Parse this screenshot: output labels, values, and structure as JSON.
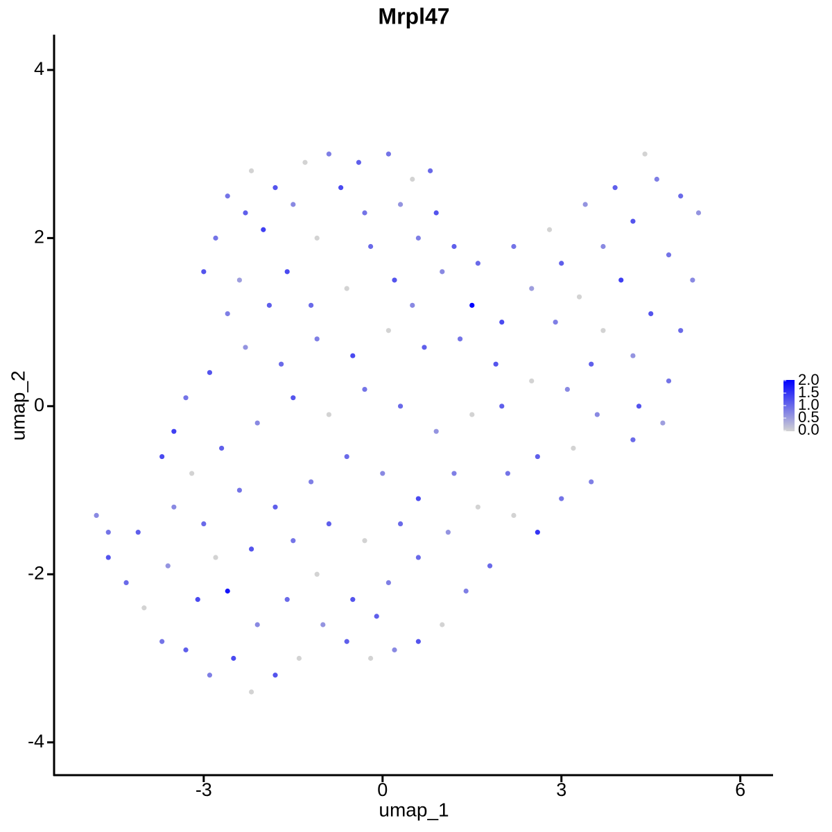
{
  "chart_data": {
    "type": "scatter",
    "title": "Mrpl47",
    "x_label": "umap_1",
    "y_label": "umap_2",
    "x": [
      -2.2,
      -1.8,
      -1.3,
      -0.9,
      -0.4,
      0.1,
      0.5,
      0.8,
      -2.3,
      -1.5,
      -0.7,
      0.3,
      0.9,
      -2.8,
      -2.0,
      -1.1,
      -0.2,
      0.6,
      1.2,
      -3.0,
      -2.4,
      -1.6,
      -0.6,
      0.2,
      1.0,
      1.6,
      1.5,
      2.2,
      2.8,
      3.4,
      3.9,
      4.4,
      4.6,
      5.0,
      5.3,
      4.2,
      3.7,
      3.0,
      2.5,
      2.0,
      3.3,
      4.0,
      4.8,
      5.2,
      4.5,
      3.7,
      2.9,
      5.0,
      4.2,
      3.5,
      4.8,
      4.3,
      3.6,
      4.7,
      4.2,
      3.2,
      3.5,
      3.0,
      2.6,
      2.2,
      1.8,
      1.4,
      1.0,
      0.6,
      0.2,
      -0.2,
      -0.6,
      -1.0,
      -1.4,
      -1.8,
      -2.2,
      -2.5,
      -2.9,
      -3.3,
      -3.7,
      -4.0,
      -4.3,
      -4.6,
      -4.8,
      -4.6,
      -4.1,
      -3.6,
      -3.1,
      -2.6,
      -2.1,
      -1.6,
      -1.1,
      -0.5,
      0.1,
      0.6,
      1.1,
      1.6,
      2.1,
      2.6,
      3.1,
      2.5,
      1.9,
      1.3,
      0.7,
      0.1,
      -0.5,
      -1.1,
      -1.7,
      -2.3,
      -2.9,
      -3.3,
      -3.5,
      -3.7,
      -3.2,
      -2.7,
      -2.1,
      -1.5,
      -0.9,
      -0.3,
      0.3,
      0.9,
      1.5,
      2.0,
      1.2,
      0.6,
      0.0,
      -0.6,
      -1.2,
      -1.8,
      -2.4,
      -3.0,
      -3.5,
      -2.8,
      -2.2,
      -1.5,
      -0.9,
      -0.3,
      0.3,
      -0.1,
      -2.6,
      -1.9,
      -2.6,
      -1.2,
      0.5,
      -0.3
    ],
    "y": [
      2.8,
      2.6,
      2.9,
      3.0,
      2.9,
      3.0,
      2.7,
      2.8,
      2.3,
      2.4,
      2.6,
      2.4,
      2.3,
      2.0,
      2.1,
      2.0,
      1.9,
      2.0,
      1.9,
      1.6,
      1.5,
      1.6,
      1.4,
      1.5,
      1.6,
      1.7,
      1.2,
      1.9,
      2.1,
      2.4,
      2.6,
      3.0,
      2.7,
      2.5,
      2.3,
      2.2,
      1.9,
      1.7,
      1.4,
      1.0,
      1.3,
      1.5,
      1.8,
      1.5,
      1.1,
      0.9,
      1.0,
      0.9,
      0.6,
      0.5,
      0.3,
      0.0,
      -0.1,
      -0.2,
      -0.4,
      -0.5,
      -0.9,
      -1.1,
      -1.5,
      -1.3,
      -1.9,
      -2.2,
      -2.6,
      -2.8,
      -2.9,
      -3.0,
      -2.8,
      -2.6,
      -3.0,
      -3.2,
      -3.4,
      -3.0,
      -3.2,
      -2.9,
      -2.8,
      -2.4,
      -2.1,
      -1.8,
      -1.3,
      -1.5,
      -1.5,
      -1.9,
      -2.3,
      -2.2,
      -2.6,
      -2.3,
      -2.0,
      -2.3,
      -2.1,
      -1.8,
      -1.5,
      -1.2,
      -0.8,
      -0.6,
      0.2,
      0.3,
      0.5,
      0.8,
      0.7,
      0.9,
      0.6,
      0.8,
      0.5,
      0.7,
      0.4,
      0.1,
      -0.3,
      -0.6,
      -0.8,
      -0.5,
      -0.2,
      0.1,
      -0.1,
      0.2,
      0.0,
      -0.3,
      -0.1,
      0.0,
      -0.8,
      -1.1,
      -0.8,
      -0.6,
      -0.9,
      -1.2,
      -1.0,
      -1.4,
      -1.2,
      -1.8,
      -1.7,
      -1.6,
      -1.4,
      -1.6,
      -1.4,
      -2.5,
      2.5,
      1.2,
      1.1,
      1.2,
      1.2,
      2.3
    ],
    "values": [
      0,
      1.2,
      0,
      0.8,
      1.1,
      0.9,
      0,
      1.0,
      1.1,
      0.7,
      1.3,
      0.6,
      1.2,
      0.9,
      1.4,
      0,
      1.0,
      0.8,
      1.1,
      1.2,
      0.5,
      1.3,
      0,
      1.2,
      0.7,
      1.0,
      2.0,
      0.9,
      0,
      0.6,
      1.1,
      0,
      0.8,
      1.0,
      0.6,
      1.2,
      0.7,
      1.1,
      0.5,
      1.3,
      0,
      1.4,
      0.9,
      0.7,
      1.2,
      0,
      0.8,
      1.0,
      0.6,
      1.1,
      0.9,
      1.2,
      0.7,
      0.5,
      1.0,
      0,
      0.8,
      0.9,
      1.5,
      0,
      1.0,
      0.8,
      0,
      1.2,
      0.7,
      0,
      1.1,
      0.6,
      0,
      1.2,
      0,
      1.3,
      0.8,
      1.1,
      0.9,
      0,
      1.0,
      1.2,
      0.7,
      0.9,
      1.1,
      0.6,
      1.3,
      1.8,
      0.7,
      1.0,
      0,
      1.2,
      0.8,
      1.0,
      0.6,
      0,
      0.9,
      1.1,
      0.7,
      0,
      1.2,
      0.9,
      1.1,
      0,
      1.3,
      0.8,
      1.0,
      0.6,
      1.2,
      0.9,
      1.4,
      1.3,
      0,
      1.1,
      0.7,
      1.2,
      0,
      0.9,
      1.0,
      0.6,
      0,
      1.1,
      0.8,
      1.3,
      0.7,
      1.0,
      0.8,
      1.1,
      0.9,
      1.0,
      0.7,
      0,
      1.2,
      0.9,
      1.1,
      0,
      1.0,
      1.1,
      0.9,
      1.1,
      0.8,
      1.0,
      0.7,
      0.9
    ],
    "xlim": [
      -5.51,
      6.55
    ],
    "ylim": [
      -4.39,
      4.42
    ],
    "xticks": [
      -3,
      0,
      3,
      6
    ],
    "yticks": [
      -4,
      -2,
      0,
      2,
      4
    ],
    "colorbar": {
      "lim": [
        0,
        2
      ],
      "low_color": "#d3d3d3",
      "high_color": "#0000ff",
      "ticks": [
        {
          "value": 0,
          "label": "0.0"
        },
        0.5,
        {
          "value": 1,
          "label": "1.0"
        },
        1.5,
        {
          "value": 2,
          "label": "2.0"
        }
      ]
    }
  }
}
